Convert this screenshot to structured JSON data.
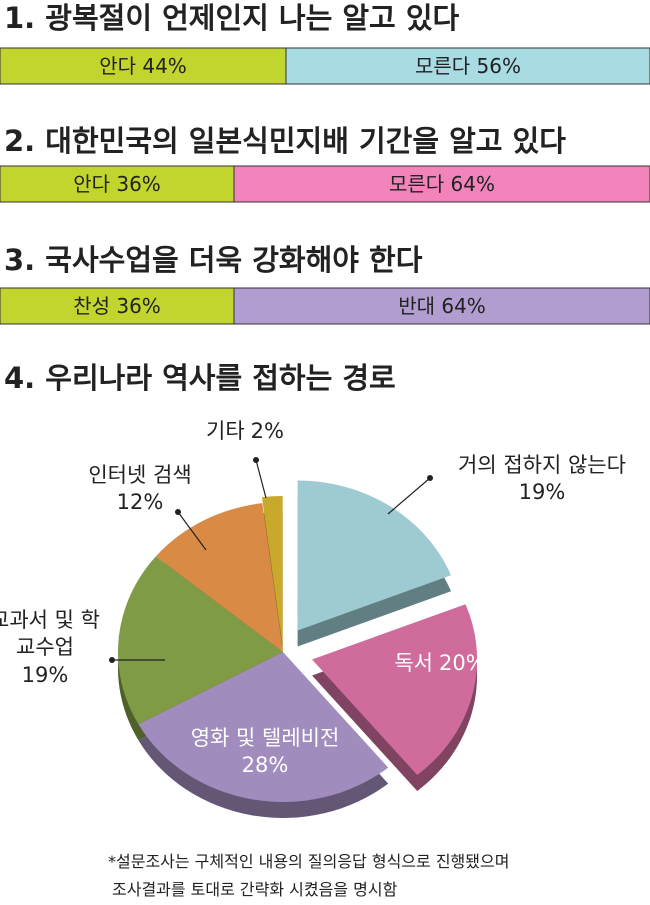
{
  "chart_data": [
    {
      "type": "stacked-bar",
      "title": "1. 광복절이 언제인지 나는 알고 있다",
      "categories": [
        "안다",
        "모른다"
      ],
      "values": [
        44,
        56
      ],
      "value_labels": [
        "44%",
        "56%"
      ],
      "colors": [
        "#c2d52f",
        "#a8dbe2"
      ]
    },
    {
      "type": "stacked-bar",
      "title": "2. 대한민국의 일본식민지배 기간을 알고 있다",
      "categories": [
        "안다",
        "모른다"
      ],
      "values": [
        36,
        64
      ],
      "value_labels": [
        "36%",
        "64%"
      ],
      "colors": [
        "#c2d52f",
        "#f283bb"
      ]
    },
    {
      "type": "stacked-bar",
      "title": "3. 국사수업을 더욱 강화해야 한다",
      "categories": [
        "찬성",
        "반대"
      ],
      "values": [
        36,
        64
      ],
      "value_labels": [
        "36%",
        "64%"
      ],
      "colors": [
        "#c2d52f",
        "#b19dd0"
      ]
    },
    {
      "type": "pie",
      "title": "4. 우리나라 역사를 접하는 경로",
      "categories": [
        "거의 접하지 않는다",
        "독서",
        "영화 및 텔레비전",
        "교과서 및 학교수업",
        "인터넷 검색",
        "기타"
      ],
      "values": [
        19,
        20,
        28,
        19,
        12,
        2
      ],
      "value_labels": [
        "19%",
        "20%",
        "28%",
        "19%",
        "12%",
        "2%"
      ],
      "colors": [
        "#9dcbd1",
        "#cf6c9c",
        "#a08cbd",
        "#7f9b45",
        "#d98b46",
        "#c9a92b"
      ]
    }
  ],
  "footnote": [
    "*설문조사는 구체적인 내용의 질의응답 형식으로 진행됐으며",
    "조사결과를 토대로 간략화 시켰음을 명시함"
  ]
}
